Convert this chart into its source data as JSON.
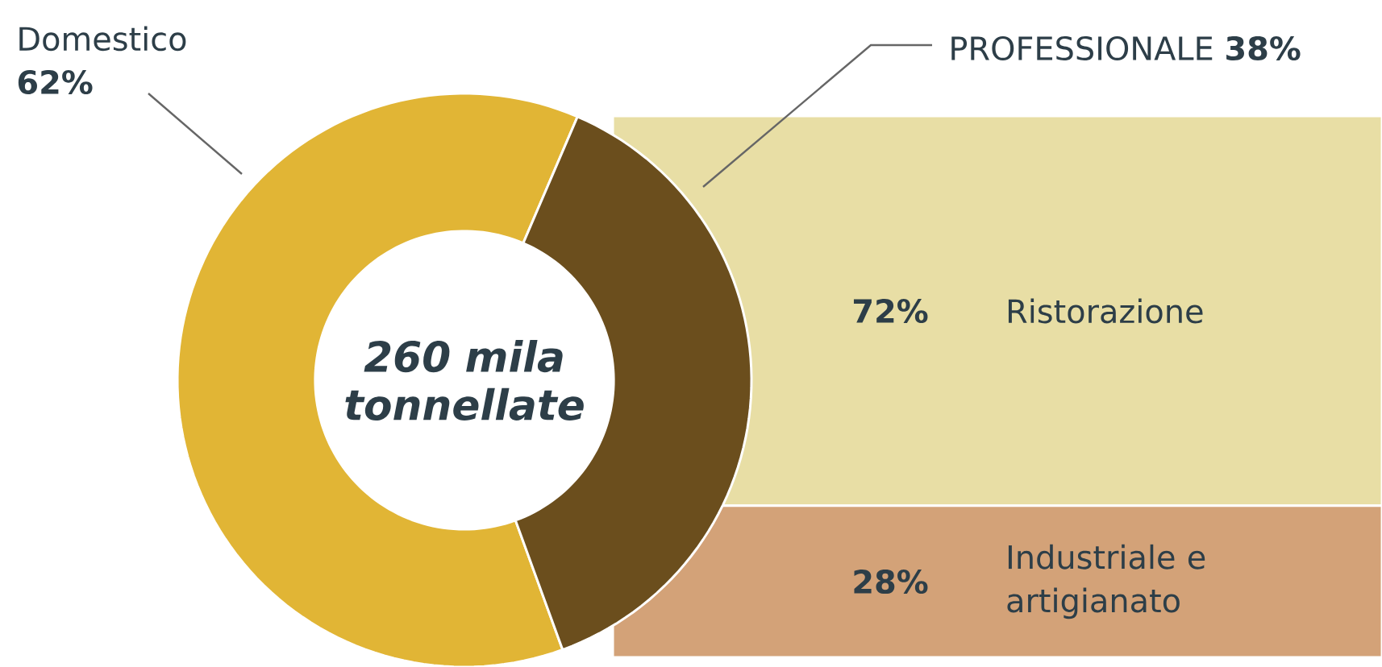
{
  "chart_data": [
    {
      "type": "donut",
      "categories": [
        "Domestico",
        "PROFESSIONALE"
      ],
      "values": [
        62,
        38
      ],
      "value_labels": [
        "62%",
        "38%"
      ],
      "colors": [
        "#e1b535",
        "#6b4e1d"
      ],
      "annotations": [
        "260 mila tonnellate"
      ]
    },
    {
      "type": "bar",
      "stacked": true,
      "categories": [
        null
      ],
      "series": [
        {
          "name": "Industriale e artigianato",
          "color": "#d3a278",
          "values": [
            28
          ],
          "value_labels": [
            "28%"
          ]
        },
        {
          "name": "Ristorazione",
          "color": "#e8dea5",
          "values": [
            72
          ],
          "value_labels": [
            "72%"
          ]
        }
      ]
    }
  ]
}
